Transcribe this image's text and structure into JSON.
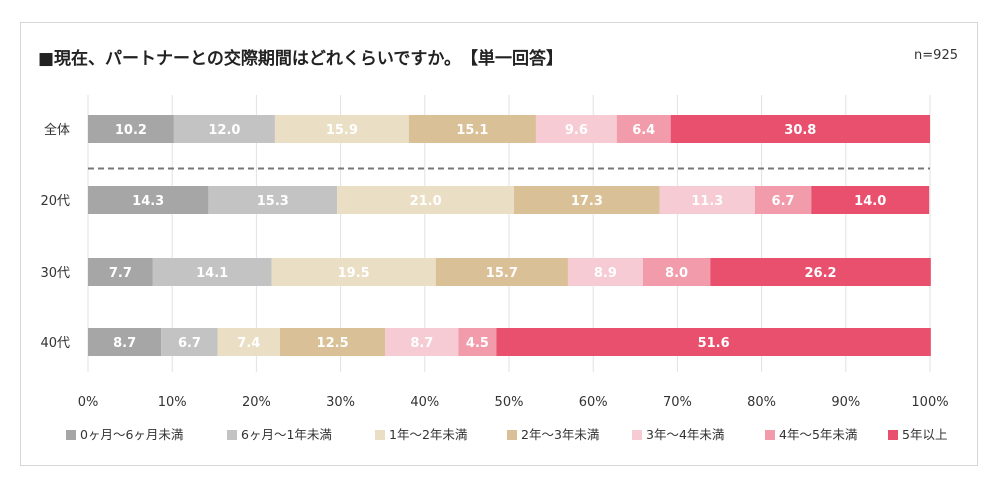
{
  "title": "■現在、パートナーとの交際期間はどれくらいですか。　【単一回答】",
  "n_label": "n=925",
  "colors": [
    "#a6a6a6",
    "#c3c3c3",
    "#eadfc4",
    "#d9c096",
    "#f6cbd3",
    "#f19bab",
    "#e8506e"
  ],
  "chart_data": {
    "type": "bar",
    "orientation": "horizontal-stacked-100",
    "title": "■現在、パートナーとの交際期間はどれくらいですか。　【単一回答】",
    "categories": [
      "全体",
      "20代",
      "30代",
      "40代"
    ],
    "series": [
      {
        "name": "0ヶ月〜6ヶ月未満",
        "values": [
          10.2,
          14.3,
          7.7,
          8.7
        ]
      },
      {
        "name": "6ヶ月〜1年未満",
        "values": [
          12.0,
          15.3,
          14.1,
          6.7
        ]
      },
      {
        "name": "1年〜2年未満",
        "values": [
          15.9,
          21.0,
          19.5,
          7.4
        ]
      },
      {
        "name": "2年〜3年未満",
        "values": [
          15.1,
          17.3,
          15.7,
          12.5
        ]
      },
      {
        "name": "3年〜4年未満",
        "values": [
          9.6,
          11.3,
          8.9,
          8.7
        ]
      },
      {
        "name": "4年〜5年未満",
        "values": [
          6.4,
          6.7,
          8.0,
          4.5
        ]
      },
      {
        "name": "5年以上",
        "values": [
          30.8,
          14.0,
          26.2,
          51.6
        ]
      }
    ],
    "xlim": [
      0,
      100
    ],
    "xticks": [
      "0%",
      "10%",
      "20%",
      "30%",
      "40%",
      "50%",
      "60%",
      "70%",
      "80%",
      "90%",
      "100%"
    ],
    "grid": true,
    "legend": "bottom",
    "separator_after_first_category": true
  }
}
